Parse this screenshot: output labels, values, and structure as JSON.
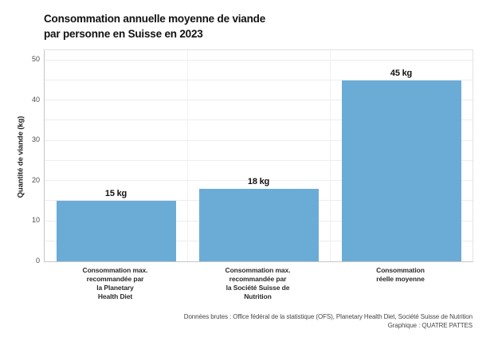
{
  "title": {
    "text": "Consommation annuelle moyenne de viande\npar personne en Suisse en 2023"
  },
  "chart_data": {
    "type": "bar",
    "title": "Consommation annuelle moyenne de viande par personne en Suisse en 2023",
    "categories": [
      "Consommation max.\nrecommandée par\nla Planetary\nHealth Diet",
      "Consommation max.\nrecommandée par\nla Société Suisse de\nNutrition",
      "Consommation\nréelle moyenne"
    ],
    "values": [
      15,
      18,
      45
    ],
    "value_labels": [
      "15 kg",
      "18 kg",
      "45 kg"
    ],
    "xlabel": "",
    "ylabel": "Quantité de viande (kg)",
    "ylim": [
      0,
      52.5
    ],
    "yticks": [
      0,
      10,
      20,
      30,
      40,
      50
    ],
    "grid_step": 5,
    "grid": "on",
    "legend": "none",
    "bar_color": "#6bacd6"
  },
  "footer": {
    "text": "Données brutes : Office fédéral de la statistique (OFS), Planetary Health Diet, Société Suisse de Nutrition\nGraphique : QUATRE PATTES"
  }
}
